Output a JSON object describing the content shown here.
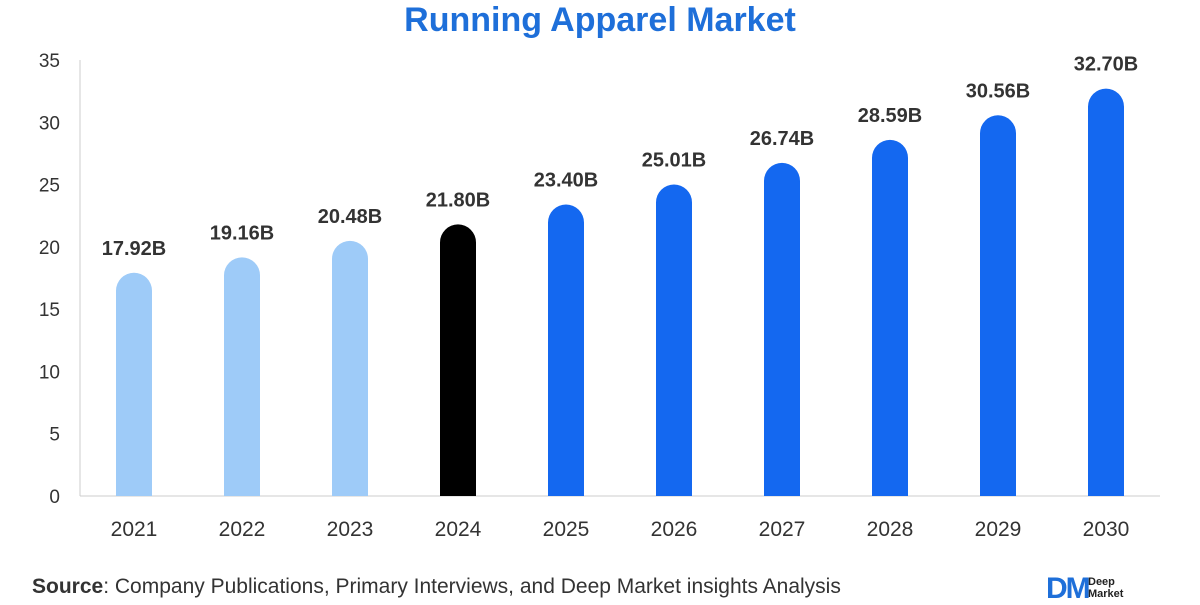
{
  "chart_data": {
    "type": "bar",
    "title": "Running Apparel Market",
    "categories": [
      "2021",
      "2022",
      "2023",
      "2024",
      "2025",
      "2026",
      "2027",
      "2028",
      "2029",
      "2030"
    ],
    "values": [
      17.92,
      19.16,
      20.48,
      21.8,
      23.4,
      25.01,
      26.74,
      28.59,
      30.56,
      32.7
    ],
    "value_labels": [
      "17.92B",
      "19.16B",
      "20.48B",
      "21.80B",
      "23.40B",
      "25.01B",
      "26.74B",
      "28.59B",
      "30.56B",
      "32.70B"
    ],
    "bar_colors": [
      "#9ecbf8",
      "#9ecbf8",
      "#9ecbf8",
      "#000000",
      "#1468f0",
      "#1468f0",
      "#1468f0",
      "#1468f0",
      "#1468f0",
      "#1468f0"
    ],
    "ylim": [
      0,
      35
    ],
    "yticks": [
      0,
      5,
      10,
      15,
      20,
      25,
      30,
      35
    ],
    "xlabel": "",
    "ylabel": "",
    "grid": false,
    "legend": "none"
  },
  "source": {
    "label": "Source",
    "text": ": Company Publications, Primary Interviews, and Deep Market insights Analysis"
  },
  "logo": {
    "mark": "DM",
    "line1": "Deep",
    "line2": "Market"
  },
  "colors": {
    "title": "#1e6fd9",
    "historic": "#9ecbf8",
    "base_year": "#000000",
    "forecast": "#1468f0"
  }
}
